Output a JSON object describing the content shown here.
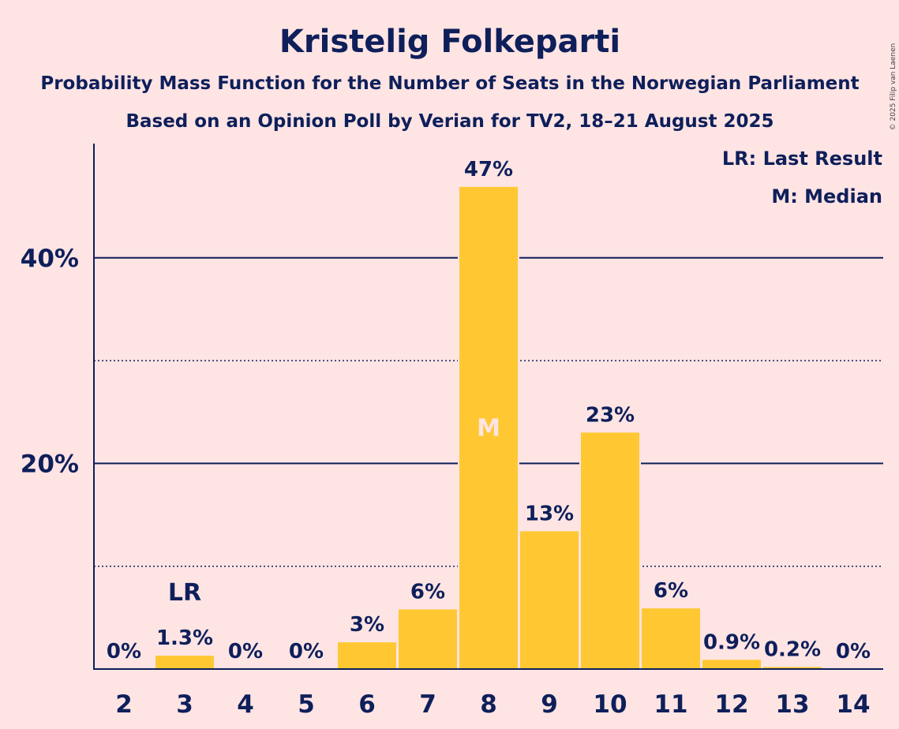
{
  "title": "Kristelig Folkeparti",
  "subtitle1": "Probability Mass Function for the Number of Seats in the Norwegian Parliament",
  "subtitle2": "Based on an Opinion Poll by Verian for TV2, 18–21 August 2025",
  "legend": {
    "lr": "LR: Last Result",
    "m": "M: Median"
  },
  "copyright": "© 2025 Filip van Laenen",
  "colors": {
    "background": "#FFE4E4",
    "bar": "#FFC832",
    "text": "#0E1F5A"
  },
  "chart_data": {
    "type": "bar",
    "categories": [
      "2",
      "3",
      "4",
      "5",
      "6",
      "7",
      "8",
      "9",
      "10",
      "11",
      "12",
      "13",
      "14"
    ],
    "values": [
      0,
      1.3,
      0,
      0,
      2.6,
      5.8,
      46.9,
      13.4,
      23.0,
      5.9,
      0.9,
      0.2,
      0
    ],
    "labels": [
      "0%",
      "1.3%",
      "0%",
      "0%",
      "3%",
      "6%",
      "47%",
      "13%",
      "23%",
      "6%",
      "0.9%",
      "0.2%",
      "0%"
    ],
    "ylim": [
      0,
      51
    ],
    "yticks": [
      {
        "value": 20,
        "label": "20%"
      },
      {
        "value": 40,
        "label": "40%"
      }
    ],
    "minor_gridlines": [
      10,
      30
    ],
    "last_result": {
      "category": "3",
      "label": "LR"
    },
    "median": {
      "category": "8",
      "label": "M"
    },
    "grid": true,
    "legend_position": "top-right"
  }
}
